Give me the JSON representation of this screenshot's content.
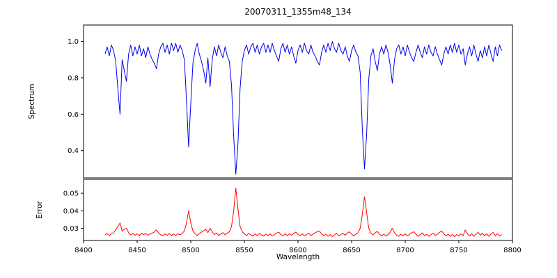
{
  "colors": {
    "spectrum_line": "#0000ee",
    "error_line": "#ff0000",
    "axis": "#000000",
    "background": "#ffffff"
  },
  "chart_data": {
    "type": "line",
    "title": "20070311_1355m48_134",
    "xlabel": "Wavelength",
    "xlim": [
      8400,
      8800
    ],
    "x_ticks": [
      8400,
      8450,
      8500,
      8550,
      8600,
      8650,
      8700,
      8750,
      8800
    ],
    "x_tick_labels": [
      "8400",
      "8450",
      "8500",
      "8550",
      "8600",
      "8650",
      "8700",
      "8750",
      "8800"
    ],
    "grid": false,
    "legend": "none",
    "panels": [
      {
        "name": "spectrum",
        "ylabel": "Spectrum",
        "color": "#0000ee",
        "ylim": [
          0.25,
          1.09
        ],
        "y_ticks": [
          0.4,
          0.6,
          0.8,
          1.0
        ],
        "y_tick_labels": [
          "0.4",
          "0.6",
          "0.8",
          "1.0"
        ],
        "x_start": 8420,
        "x_step": 2,
        "values": [
          0.93,
          0.97,
          0.92,
          0.98,
          0.95,
          0.89,
          0.74,
          0.6,
          0.9,
          0.84,
          0.78,
          0.93,
          0.98,
          0.92,
          0.97,
          0.93,
          0.98,
          0.92,
          0.96,
          0.91,
          0.97,
          0.93,
          0.9,
          0.88,
          0.85,
          0.93,
          0.97,
          0.99,
          0.94,
          0.98,
          0.93,
          0.99,
          0.95,
          0.99,
          0.94,
          0.98,
          0.95,
          0.9,
          0.68,
          0.42,
          0.66,
          0.88,
          0.95,
          0.99,
          0.93,
          0.89,
          0.84,
          0.77,
          0.91,
          0.75,
          0.9,
          0.97,
          0.92,
          0.98,
          0.94,
          0.91,
          0.97,
          0.92,
          0.89,
          0.76,
          0.48,
          0.27,
          0.44,
          0.74,
          0.89,
          0.95,
          0.98,
          0.93,
          0.97,
          0.99,
          0.94,
          0.98,
          0.93,
          0.97,
          0.99,
          0.94,
          0.98,
          0.94,
          0.99,
          0.95,
          0.92,
          0.89,
          0.96,
          0.99,
          0.94,
          0.98,
          0.93,
          0.97,
          0.92,
          0.88,
          0.95,
          0.98,
          0.94,
          0.99,
          0.95,
          0.93,
          0.98,
          0.94,
          0.92,
          0.89,
          0.87,
          0.94,
          0.98,
          0.94,
          0.99,
          0.95,
          1.0,
          0.96,
          0.94,
          0.99,
          0.95,
          0.93,
          0.97,
          0.92,
          0.89,
          0.95,
          0.98,
          0.94,
          0.92,
          0.83,
          0.52,
          0.3,
          0.49,
          0.79,
          0.92,
          0.96,
          0.89,
          0.84,
          0.93,
          0.97,
          0.93,
          0.98,
          0.94,
          0.87,
          0.77,
          0.9,
          0.96,
          0.98,
          0.93,
          0.97,
          0.92,
          0.98,
          0.94,
          0.91,
          0.89,
          0.94,
          0.98,
          0.94,
          0.91,
          0.97,
          0.93,
          0.98,
          0.94,
          0.92,
          0.97,
          0.93,
          0.9,
          0.87,
          0.93,
          0.97,
          0.93,
          0.98,
          0.94,
          0.99,
          0.94,
          0.98,
          0.93,
          0.96,
          0.87,
          0.93,
          0.97,
          0.92,
          0.98,
          0.93,
          0.89,
          0.95,
          0.91,
          0.97,
          0.92,
          0.98,
          0.93,
          0.89,
          0.97,
          0.92,
          0.98,
          0.95
        ]
      },
      {
        "name": "error",
        "ylabel": "Error",
        "color": "#ff0000",
        "ylim": [
          0.023,
          0.058
        ],
        "y_ticks": [
          0.03,
          0.04,
          0.05
        ],
        "y_tick_labels": [
          "0.03",
          "0.04",
          "0.05"
        ],
        "x_start": 8420,
        "x_step": 2,
        "values": [
          0.0262,
          0.027,
          0.0258,
          0.0268,
          0.0274,
          0.029,
          0.031,
          0.033,
          0.0285,
          0.0295,
          0.03,
          0.0275,
          0.0262,
          0.027,
          0.026,
          0.0268,
          0.0258,
          0.0272,
          0.0263,
          0.027,
          0.026,
          0.0268,
          0.0272,
          0.0278,
          0.029,
          0.0272,
          0.0262,
          0.0258,
          0.0268,
          0.026,
          0.027,
          0.0258,
          0.0266,
          0.0258,
          0.0268,
          0.0262,
          0.027,
          0.0285,
          0.033,
          0.04,
          0.033,
          0.0285,
          0.0268,
          0.0258,
          0.027,
          0.0278,
          0.0285,
          0.0295,
          0.0275,
          0.03,
          0.028,
          0.0264,
          0.0272,
          0.0258,
          0.0268,
          0.0275,
          0.0262,
          0.0272,
          0.028,
          0.031,
          0.04,
          0.053,
          0.041,
          0.031,
          0.028,
          0.0268,
          0.0258,
          0.027,
          0.0262,
          0.0256,
          0.0268,
          0.0258,
          0.027,
          0.0262,
          0.0256,
          0.0266,
          0.0258,
          0.0268,
          0.0256,
          0.0264,
          0.0272,
          0.0278,
          0.0264,
          0.0256,
          0.0268,
          0.0258,
          0.0268,
          0.026,
          0.027,
          0.0278,
          0.0264,
          0.0256,
          0.0268,
          0.0256,
          0.0264,
          0.0272,
          0.0258,
          0.0266,
          0.0274,
          0.028,
          0.0284,
          0.0268,
          0.0258,
          0.0266,
          0.0254,
          0.0264,
          0.0252,
          0.0262,
          0.027,
          0.0256,
          0.0264,
          0.0272,
          0.026,
          0.0272,
          0.028,
          0.0266,
          0.0256,
          0.0266,
          0.0274,
          0.03,
          0.038,
          0.048,
          0.039,
          0.03,
          0.0272,
          0.0262,
          0.0274,
          0.0282,
          0.0266,
          0.0256,
          0.0266,
          0.0256,
          0.0264,
          0.0278,
          0.03,
          0.0275,
          0.026,
          0.0254,
          0.0266,
          0.0256,
          0.0268,
          0.0256,
          0.0264,
          0.0274,
          0.028,
          0.0266,
          0.0254,
          0.0264,
          0.0274,
          0.0258,
          0.0266,
          0.0254,
          0.0264,
          0.0272,
          0.0258,
          0.0266,
          0.0276,
          0.0284,
          0.0268,
          0.0256,
          0.0266,
          0.0254,
          0.0264,
          0.0252,
          0.0264,
          0.0256,
          0.0268,
          0.0258,
          0.029,
          0.0268,
          0.0256,
          0.0268,
          0.0254,
          0.0266,
          0.0276,
          0.026,
          0.0272,
          0.0256,
          0.0268,
          0.0254,
          0.0266,
          0.0276,
          0.0258,
          0.0268,
          0.0256,
          0.0264
        ]
      }
    ]
  }
}
